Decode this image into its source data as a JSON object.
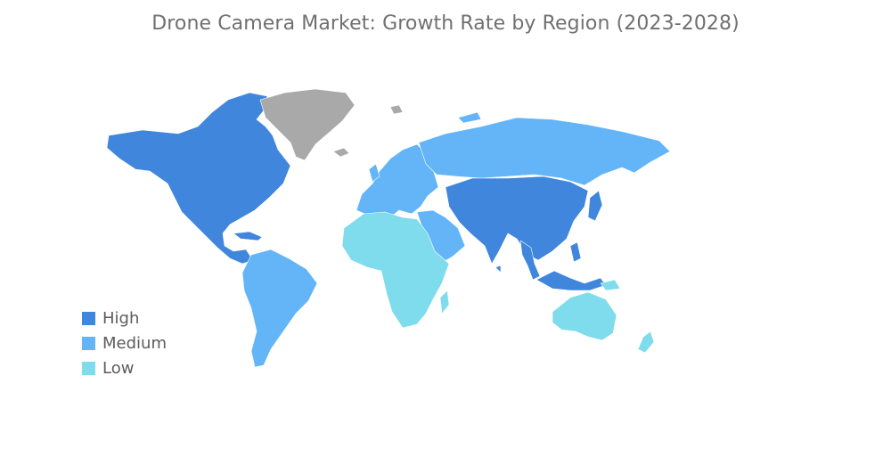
{
  "title": "Drone Camera Market: Growth Rate by Region (2023-2028)",
  "colors": {
    "high": "#3f86dc",
    "medium": "#63b5f8",
    "low": "#7fdcec",
    "no_data": "#a9a9a9"
  },
  "legend": [
    {
      "label": "High",
      "color": "#3f86dc"
    },
    {
      "label": "Medium",
      "color": "#63b5f8"
    },
    {
      "label": "Low",
      "color": "#7fdcec"
    }
  ],
  "regions": [
    {
      "name": "North America",
      "level": "High"
    },
    {
      "name": "South America",
      "level": "Medium"
    },
    {
      "name": "Europe",
      "level": "Medium"
    },
    {
      "name": "Russia",
      "level": "Medium"
    },
    {
      "name": "Middle East",
      "level": "Medium"
    },
    {
      "name": "Africa",
      "level": "Low"
    },
    {
      "name": "Asia-Pacific",
      "level": "High"
    },
    {
      "name": "Australia",
      "level": "Low"
    },
    {
      "name": "Greenland",
      "level": "No data"
    }
  ]
}
